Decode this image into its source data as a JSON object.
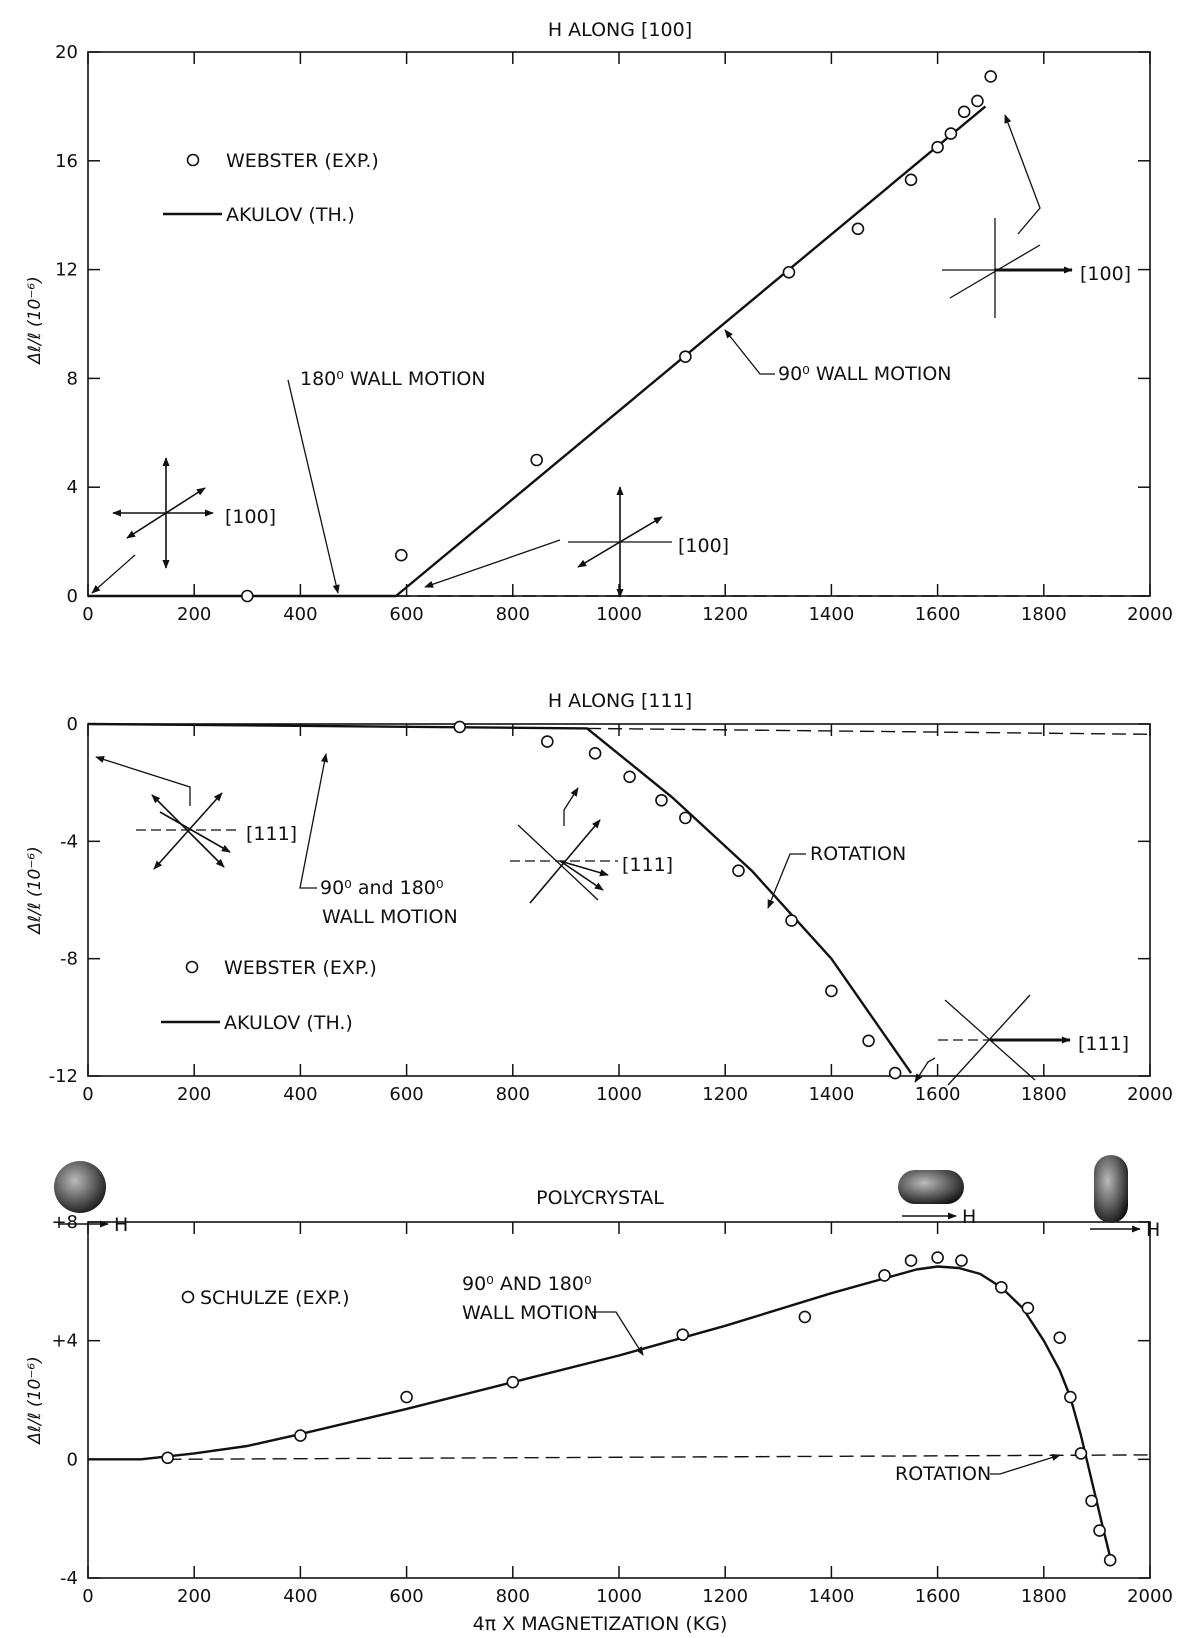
{
  "chart_data": [
    {
      "type": "scatter",
      "title": "H ALONG [100]",
      "xlabel": "",
      "ylabel": "Δℓ/ℓ (10⁻⁶)",
      "xlim": [
        0,
        2000
      ],
      "ylim": [
        0,
        20
      ],
      "xticks": [
        0,
        200,
        400,
        600,
        800,
        1000,
        1200,
        1400,
        1600,
        1800,
        2000
      ],
      "yticks": [
        0,
        4,
        8,
        12,
        16,
        20
      ],
      "xtick_labels": [
        "0",
        "200",
        "400",
        "600",
        "800",
        "1000",
        "1200",
        "1400",
        "1600",
        "1800",
        "2000"
      ],
      "ytick_labels": [
        "0",
        "4",
        "8",
        "12",
        "16",
        "20"
      ],
      "legend": [
        {
          "marker": "circle",
          "label": "WEBSTER (EXP.)"
        },
        {
          "marker": "line",
          "label": "AKULOV (TH.)"
        }
      ],
      "series": [
        {
          "name": "WEBSTER (EXP.)",
          "kind": "points",
          "x": [
            300,
            590,
            845,
            1125,
            1320,
            1450,
            1550,
            1600,
            1625,
            1650,
            1675,
            1700
          ],
          "y": [
            0.0,
            1.5,
            5.0,
            8.8,
            11.9,
            13.5,
            15.3,
            16.5,
            17.0,
            17.8,
            18.2,
            19.1
          ]
        },
        {
          "name": "AKULOV (TH.)",
          "kind": "line",
          "x": [
            0,
            580,
            1690
          ],
          "y": [
            0,
            0,
            18.0
          ]
        },
        {
          "name": "",
          "kind": "dashed",
          "x": [
            580,
            2000
          ],
          "y": [
            0,
            0
          ]
        }
      ],
      "annotations": [
        {
          "text": "180⁰ WALL MOTION"
        },
        {
          "text": "90⁰ WALL MOTION"
        },
        {
          "text": "[100]"
        },
        {
          "text": "[100]"
        },
        {
          "text": "[100]"
        }
      ]
    },
    {
      "type": "scatter",
      "title": "H ALONG [111]",
      "xlabel": "",
      "ylabel": "Δℓ/ℓ (10⁻⁶)",
      "xlim": [
        0,
        2000
      ],
      "ylim": [
        -12,
        0
      ],
      "xticks": [
        0,
        200,
        400,
        600,
        800,
        1000,
        1200,
        1400,
        1600,
        1800,
        2000
      ],
      "yticks": [
        0,
        -4,
        -8,
        -12
      ],
      "xtick_labels": [
        "0",
        "200",
        "400",
        "600",
        "800",
        "1000",
        "1200",
        "1400",
        "1600",
        "1800",
        "2000"
      ],
      "ytick_labels": [
        "0",
        "-4",
        "-8",
        "-12"
      ],
      "legend": [
        {
          "marker": "circle",
          "label": "WEBSTER (EXP.)"
        },
        {
          "marker": "line",
          "label": "AKULOV (TH.)"
        }
      ],
      "series": [
        {
          "name": "WEBSTER (EXP.)",
          "kind": "points",
          "x": [
            700,
            865,
            955,
            1020,
            1080,
            1125,
            1225,
            1325,
            1400,
            1470,
            1520
          ],
          "y": [
            -0.1,
            -0.6,
            -1.0,
            -1.8,
            -2.6,
            -3.2,
            -5.0,
            -6.7,
            -9.1,
            -10.8,
            -11.9
          ]
        },
        {
          "name": "AKULOV (TH.)",
          "kind": "line",
          "x": [
            0,
            940,
            1100,
            1250,
            1400,
            1550
          ],
          "y": [
            0,
            -0.15,
            -2.5,
            -5.0,
            -8.0,
            -11.9
          ]
        },
        {
          "name": "",
          "kind": "dashed",
          "x": [
            940,
            2000
          ],
          "y": [
            -0.15,
            -0.35
          ]
        }
      ],
      "annotations": [
        {
          "text": "90⁰ and 180⁰"
        },
        {
          "text": "WALL MOTION"
        },
        {
          "text": "ROTATION"
        },
        {
          "text": "[111]"
        },
        {
          "text": "[111]"
        },
        {
          "text": "[111]"
        }
      ]
    },
    {
      "type": "scatter",
      "title": "POLYCRYSTAL",
      "xlabel": "4π X MAGNETIZATION (KG)",
      "ylabel": "Δℓ/ℓ (10⁻⁶)",
      "xlim": [
        0,
        2000
      ],
      "ylim": [
        -4,
        8
      ],
      "xticks": [
        0,
        200,
        400,
        600,
        800,
        1000,
        1200,
        1400,
        1600,
        1800,
        2000
      ],
      "yticks": [
        8,
        4,
        0,
        -4
      ],
      "xtick_labels": [
        "0",
        "200",
        "400",
        "600",
        "800",
        "1000",
        "1200",
        "1400",
        "1600",
        "1800",
        "2000"
      ],
      "ytick_labels": [
        "+8",
        "+4",
        "0",
        "-4"
      ],
      "legend": [
        {
          "marker": "circle",
          "label": "SCHULZE (EXP.)"
        }
      ],
      "series": [
        {
          "name": "SCHULZE (EXP.)",
          "kind": "points",
          "x": [
            150,
            400,
            600,
            800,
            1120,
            1350,
            1500,
            1550,
            1600,
            1645,
            1720,
            1770,
            1830,
            1850,
            1870,
            1890,
            1905,
            1925
          ],
          "y": [
            0.05,
            0.8,
            2.1,
            2.6,
            4.2,
            4.8,
            6.2,
            6.7,
            6.8,
            6.7,
            5.8,
            5.1,
            4.1,
            2.1,
            0.2,
            -1.4,
            -2.4,
            -3.4
          ]
        },
        {
          "name": "",
          "kind": "curve",
          "x": [
            0,
            100,
            200,
            300,
            400,
            600,
            800,
            1000,
            1200,
            1400,
            1500,
            1560,
            1600,
            1640,
            1680,
            1720,
            1760,
            1800,
            1830,
            1850,
            1870,
            1890,
            1910,
            1925
          ],
          "y": [
            0,
            0,
            0.2,
            0.45,
            0.85,
            1.7,
            2.6,
            3.5,
            4.5,
            5.6,
            6.1,
            6.4,
            6.5,
            6.45,
            6.25,
            5.8,
            5.1,
            4.0,
            3.0,
            2.1,
            0.8,
            -0.7,
            -2.2,
            -3.3
          ]
        },
        {
          "name": "",
          "kind": "dashed",
          "x": [
            150,
            2000
          ],
          "y": [
            0,
            0.15
          ]
        }
      ],
      "annotations": [
        {
          "text": "90⁰ AND 180⁰"
        },
        {
          "text": "WALL MOTION"
        },
        {
          "text": "ROTATION"
        },
        {
          "text": "H"
        },
        {
          "text": "H"
        },
        {
          "text": "H"
        }
      ]
    }
  ]
}
